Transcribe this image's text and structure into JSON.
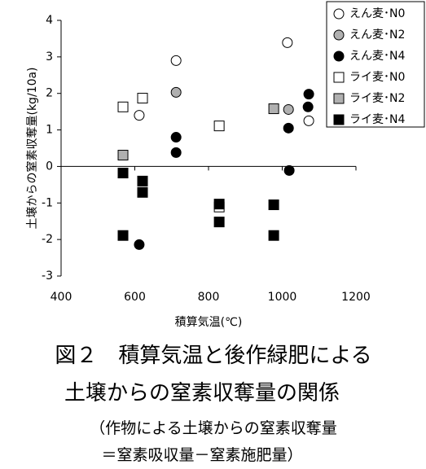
{
  "chart_data": {
    "type": "scatter",
    "xlabel": "積算気温(℃)",
    "ylabel": "土壌からの窒素収奪量(kg/10a)",
    "xlim": [
      400,
      1200
    ],
    "xticks": [
      400,
      600,
      800,
      1000,
      1200
    ],
    "ylim": [
      -3,
      4
    ],
    "yticks": [
      -3,
      -2,
      -1,
      0,
      1,
      2,
      3,
      4
    ],
    "series": [
      {
        "name": "えん麦･N0",
        "marker": "circle",
        "color": "#ffffff",
        "x": [
          612,
          712,
          1014,
          1072
        ],
        "values": [
          1.4,
          2.9,
          3.39,
          1.25
        ]
      },
      {
        "name": "えん麦･N2",
        "marker": "circle",
        "color": "#b0b0b0",
        "x": [
          712,
          1017
        ],
        "values": [
          2.03,
          1.56
        ]
      },
      {
        "name": "えん麦･N4",
        "marker": "circle",
        "color": "#000000",
        "x": [
          712,
          712,
          1017,
          1070,
          1072,
          1019,
          612
        ],
        "values": [
          0.8,
          0.38,
          1.05,
          1.63,
          1.98,
          -0.11,
          -2.14
        ]
      },
      {
        "name": "ライ麦･N0",
        "marker": "square",
        "color": "#ffffff",
        "x": [
          568,
          621,
          829,
          829
        ],
        "values": [
          1.63,
          1.87,
          1.11,
          -1.11
        ]
      },
      {
        "name": "ライ麦･N2",
        "marker": "square",
        "color": "#b0b0b0",
        "x": [
          568,
          977
        ],
        "values": [
          0.31,
          1.58
        ]
      },
      {
        "name": "ライ麦･N4",
        "marker": "square",
        "color": "#000000",
        "x": [
          568,
          621,
          621,
          568,
          829,
          829,
          977,
          977
        ],
        "values": [
          -0.18,
          -0.4,
          -0.71,
          -1.89,
          -1.03,
          -1.52,
          -1.05,
          -1.89
        ]
      }
    ]
  },
  "caption": {
    "lines": [
      "図２　積算気温と後作緑肥による",
      "土壌からの窒素収奪量の関係",
      "（作物による土壌からの窒素収奪量",
      "＝窒素吸収量－窒素施肥量）"
    ]
  }
}
